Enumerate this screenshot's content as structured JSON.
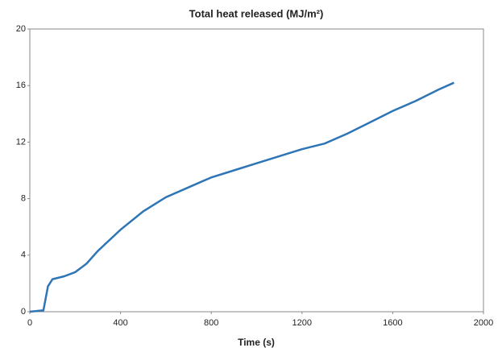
{
  "chart_data": {
    "type": "line",
    "title": "Total heat released  (MJ/m²)",
    "x_label": "Time (s)",
    "x": [
      0,
      60,
      80,
      100,
      150,
      200,
      250,
      300,
      400,
      500,
      600,
      700,
      800,
      900,
      1000,
      1100,
      1200,
      1300,
      1400,
      1500,
      1600,
      1700,
      1800,
      1870
    ],
    "series": [
      {
        "name": "Total heat released",
        "color": "#2e75b6",
        "values": [
          0,
          0.1,
          1.8,
          2.3,
          2.5,
          2.8,
          3.4,
          4.3,
          5.8,
          7.1,
          8.1,
          8.8,
          9.5,
          10.0,
          10.5,
          11.0,
          11.5,
          11.9,
          12.6,
          13.4,
          14.2,
          14.9,
          15.7,
          16.2
        ]
      }
    ],
    "xlim": [
      0,
      2000
    ],
    "xticks": [
      0,
      400,
      800,
      1200,
      1600,
      2000
    ],
    "ylim": [
      0,
      20
    ],
    "yticks": [
      0,
      4,
      8,
      12,
      16,
      20
    ]
  }
}
